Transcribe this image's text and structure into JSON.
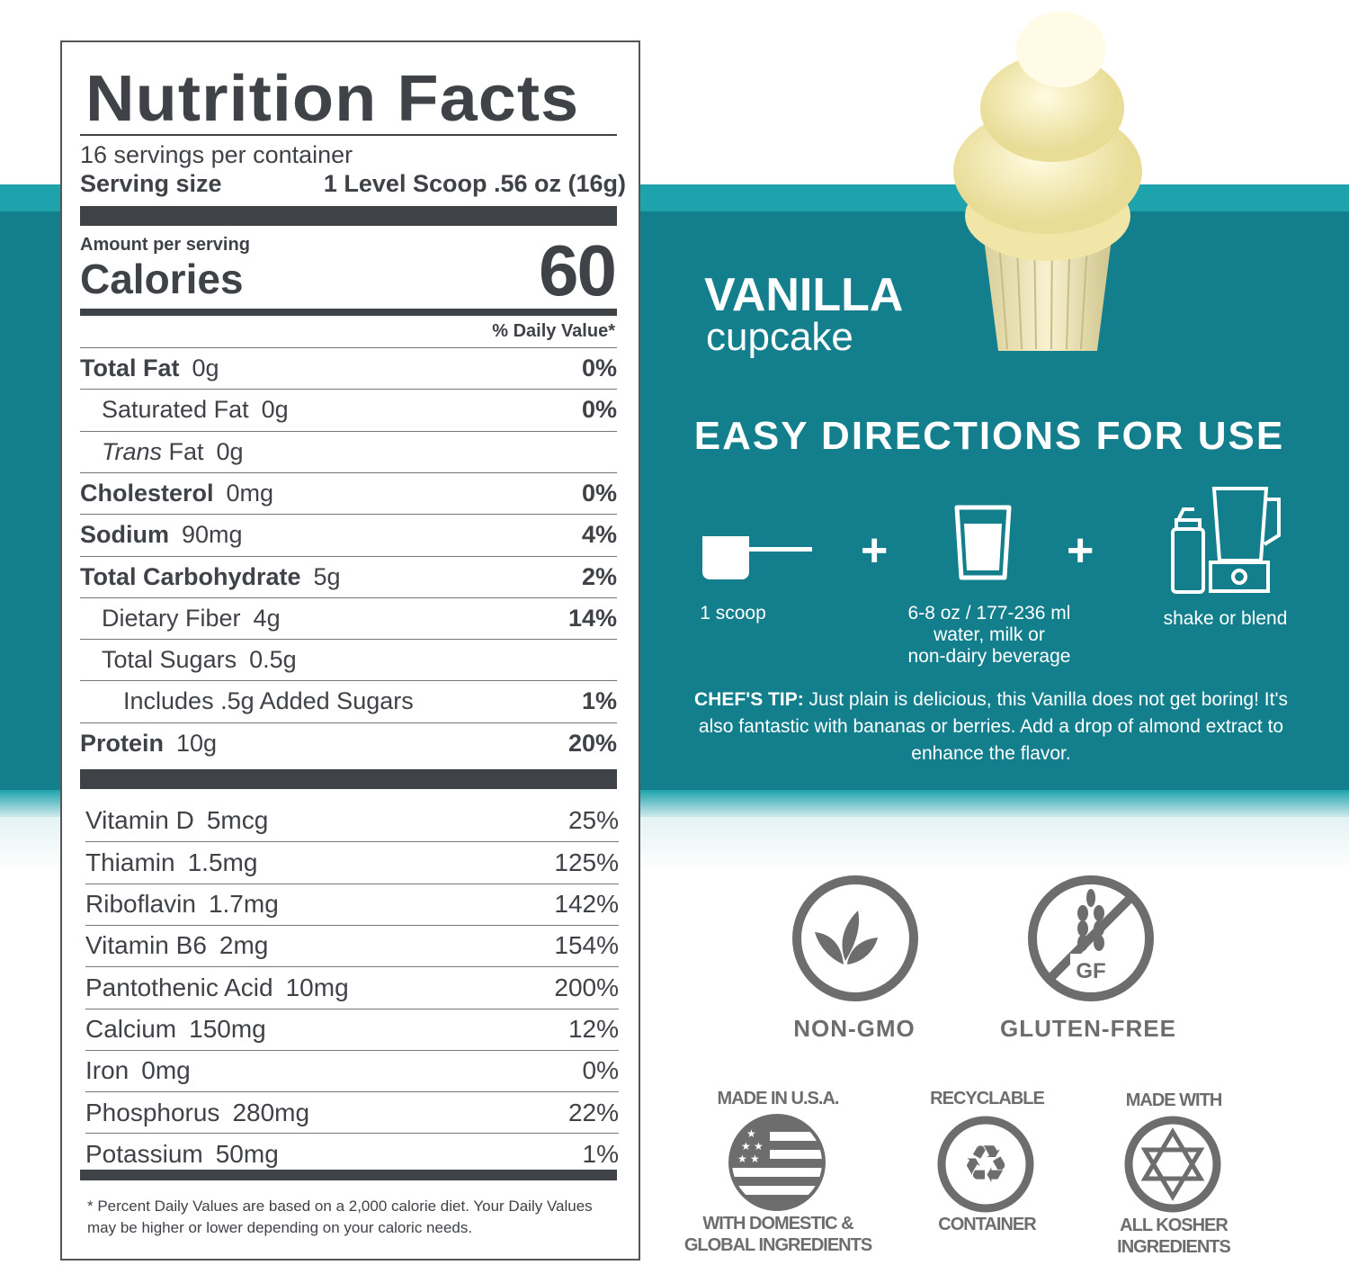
{
  "nutrition": {
    "title": "Nutrition Facts",
    "servings": "16 servings per container",
    "serving_size_label": "Serving size",
    "serving_size_value": "1 Level Scoop .56 oz (16g)",
    "amount_per_serving": "Amount per serving",
    "calories_label": "Calories",
    "calories_value": "60",
    "dv_header": "% Daily Value*",
    "nutrients": [
      {
        "name": "Total Fat",
        "amount": "0g",
        "dv": "0%",
        "bold": true,
        "indent": 0
      },
      {
        "name": "Saturated Fat",
        "amount": "0g",
        "dv": "0%",
        "bold": false,
        "indent": 1
      },
      {
        "name": "Trans",
        "name_suffix": " Fat",
        "amount": "0g",
        "dv": "",
        "bold": false,
        "indent": 1,
        "italic": true
      },
      {
        "name": "Cholesterol",
        "amount": "0mg",
        "dv": "0%",
        "bold": true,
        "indent": 0
      },
      {
        "name": "Sodium",
        "amount": "90mg",
        "dv": "4%",
        "bold": true,
        "indent": 0
      },
      {
        "name": "Total Carbohydrate",
        "amount": "5g",
        "dv": "2%",
        "bold": true,
        "indent": 0
      },
      {
        "name": "Dietary Fiber",
        "amount": "4g",
        "dv": "14%",
        "bold": false,
        "indent": 1
      },
      {
        "name": "Total Sugars",
        "amount": "0.5g",
        "dv": "",
        "bold": false,
        "indent": 1
      },
      {
        "name": "Includes .5g Added Sugars",
        "amount": "",
        "dv": "1%",
        "bold": false,
        "indent": 2
      },
      {
        "name": "Protein",
        "amount": "10g",
        "dv": "20%",
        "bold": true,
        "indent": 0
      }
    ],
    "vitamins": [
      {
        "name": "Vitamin D",
        "amount": "5mcg",
        "dv": "25%"
      },
      {
        "name": "Thiamin",
        "amount": "1.5mg",
        "dv": "125%"
      },
      {
        "name": "Riboflavin",
        "amount": "1.7mg",
        "dv": "142%"
      },
      {
        "name": "Vitamin B6",
        "amount": "2mg",
        "dv": "154%"
      },
      {
        "name": "Pantothenic Acid",
        "amount": "10mg",
        "dv": "200%"
      },
      {
        "name": "Calcium",
        "amount": "150mg",
        "dv": "12%"
      },
      {
        "name": "Iron",
        "amount": "0mg",
        "dv": "0%"
      },
      {
        "name": "Phosphorus",
        "amount": "280mg",
        "dv": "22%"
      },
      {
        "name": "Potassium",
        "amount": "50mg",
        "dv": "1%"
      }
    ],
    "footnote": "* Percent Daily Values are based on a 2,000 calorie diet. Your Daily Values may be higher or lower depending on your caloric needs."
  },
  "product": {
    "flavor": "VANILLA",
    "subtitle": "cupcake"
  },
  "directions": {
    "heading": "EASY DIRECTIONS FOR USE",
    "steps": [
      {
        "icon": "scoop-icon",
        "label": "1 scoop"
      },
      {
        "icon": "glass-icon",
        "label": "6-8 oz / 177-236 ml\nwater,  milk or\nnon-dairy beverage"
      },
      {
        "icon": "shaker-blender-icon",
        "label": "shake or blend"
      }
    ],
    "plus": "+",
    "tip_label": "CHEF'S TIP:",
    "tip_text": " Just plain is delicious, this Vanilla does not get boring! It's also fantastic with bananas or berries.  Add a drop of almond extract to enhance the flavor."
  },
  "badges": {
    "non_gmo": "NON-GMO",
    "gluten_free": "GLUTEN-FREE",
    "gf_mark": "GF",
    "usa_top": "MADE IN U.S.A.",
    "usa_bottom": "WITH DOMESTIC & GLOBAL INGREDIENTS",
    "recycle_top": "RECYCLABLE",
    "recycle_bottom": "CONTAINER",
    "kosher_top": "MADE WITH",
    "kosher_bottom": "ALL KOSHER INGREDIENTS"
  },
  "colors": {
    "teal": "#137f8d",
    "teal_light": "#1ea3ad",
    "label_text": "#3f4247",
    "badge_gray": "#6d6d6d"
  }
}
